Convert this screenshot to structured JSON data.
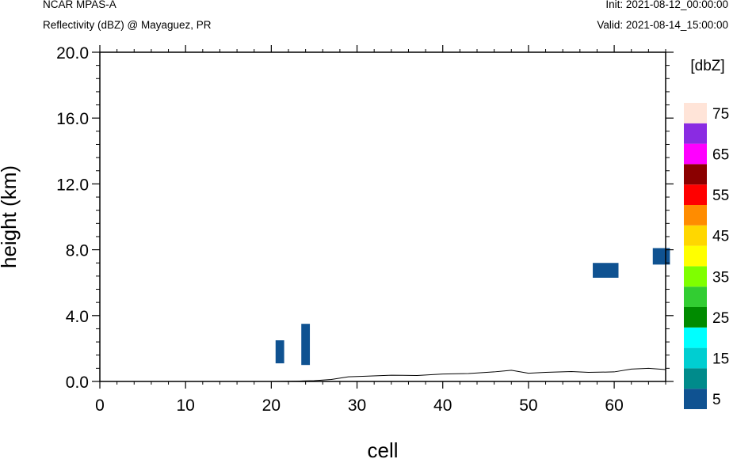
{
  "header": {
    "left_title": "NCAR MPAS-A",
    "left_subtitle": "Reflectivity (dBZ) @ Mayaguez, PR",
    "right_init": "Init: 2021-08-12_00:00:00",
    "right_valid": "Valid: 2021-08-14_15:00:00"
  },
  "chart_data": {
    "type": "heatmap",
    "title": "Reflectivity (dBZ) @ Mayaguez, PR",
    "xlabel": "cell",
    "ylabel": "height (km)",
    "xlim": [
      0,
      66
    ],
    "ylim": [
      0,
      20
    ],
    "x_ticks": [
      0,
      10,
      20,
      30,
      40,
      50,
      60
    ],
    "x_tick_labels": [
      "0",
      "10",
      "20",
      "30",
      "40",
      "50",
      "60"
    ],
    "y_ticks": [
      0,
      4,
      8,
      12,
      16,
      20
    ],
    "y_tick_labels": [
      "0.0",
      "4.0",
      "8.0",
      "12.0",
      "16.0",
      "20.0"
    ],
    "grid": false,
    "colorbar": {
      "title": "[dbZ]",
      "levels": [
        5,
        10,
        15,
        20,
        25,
        30,
        35,
        40,
        45,
        50,
        55,
        60,
        65,
        70,
        75
      ],
      "colors": [
        "#0f5291",
        "#008b8b",
        "#00ced1",
        "#00ffff",
        "#008b00",
        "#32cd32",
        "#7fff00",
        "#ffff00",
        "#ffd700",
        "#ff8c00",
        "#ff0000",
        "#8b0000",
        "#ff00ff",
        "#8a2be2",
        "#ffe4d8"
      ],
      "labels": [
        "5",
        "15",
        "25",
        "35",
        "45",
        "55",
        "65",
        "75"
      ]
    },
    "cells": [
      {
        "x0": 20.5,
        "x1": 21.5,
        "y0": 1.1,
        "y1": 2.5,
        "value": 5
      },
      {
        "x0": 23.5,
        "x1": 24.5,
        "y0": 1.0,
        "y1": 3.5,
        "value": 5
      },
      {
        "x0": 57.5,
        "x1": 60.5,
        "y0": 6.3,
        "y1": 7.2,
        "value": 5
      },
      {
        "x0": 64.5,
        "x1": 66.5,
        "y0": 7.1,
        "y1": 8.1,
        "value": 5
      }
    ],
    "terrain": {
      "x": [
        0,
        10,
        20,
        23,
        25,
        27,
        29,
        31,
        34,
        37,
        40,
        43,
        46,
        48,
        50,
        52,
        55,
        57,
        60,
        62,
        64,
        66
      ],
      "y": [
        0.0,
        0.0,
        0.0,
        0.02,
        0.05,
        0.12,
        0.28,
        0.32,
        0.38,
        0.36,
        0.45,
        0.48,
        0.58,
        0.68,
        0.5,
        0.55,
        0.6,
        0.55,
        0.58,
        0.75,
        0.8,
        0.72
      ]
    }
  }
}
